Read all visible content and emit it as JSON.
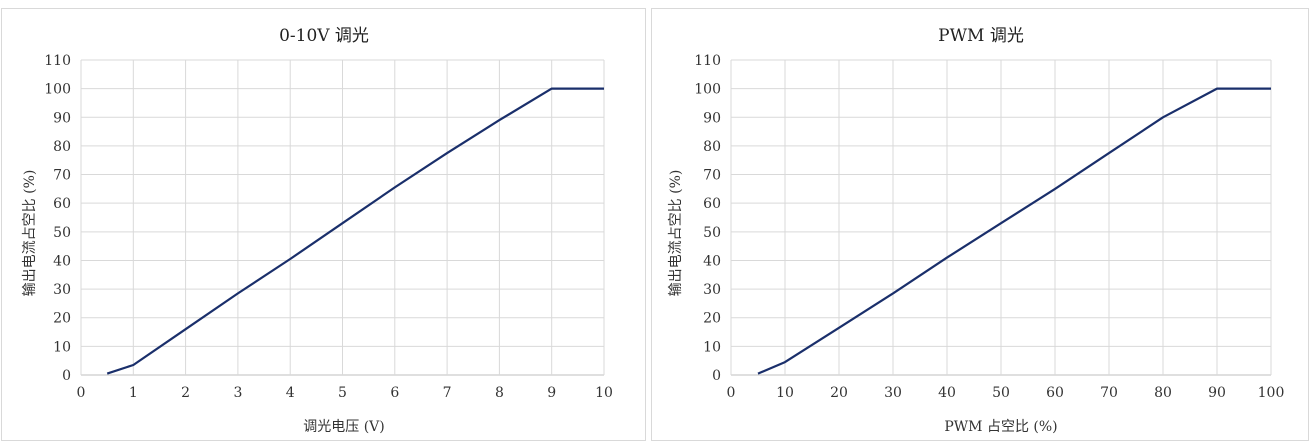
{
  "chart_data": [
    {
      "type": "line",
      "title": "0-10V 调光",
      "xlabel": "调光电压 (V)",
      "ylabel": "输出电流占空比 (%)",
      "xlim": [
        0,
        10
      ],
      "ylim": [
        0,
        110
      ],
      "xticks": [
        0,
        1,
        2,
        3,
        4,
        5,
        6,
        7,
        8,
        9,
        10
      ],
      "yticks": [
        0,
        10,
        20,
        30,
        40,
        50,
        60,
        70,
        80,
        90,
        100,
        110
      ],
      "grid": true,
      "legend": "none",
      "line_color": "#1a2f6b",
      "series": [
        {
          "x": [
            0.5,
            1,
            2,
            3,
            4,
            5,
            6,
            7,
            8,
            9,
            10
          ],
          "y": [
            0.5,
            3.5,
            16,
            28.5,
            40.5,
            53,
            65.5,
            77.5,
            89,
            100,
            100
          ]
        }
      ]
    },
    {
      "type": "line",
      "title": "PWM 调光",
      "xlabel": "PWM 占空比 (%)",
      "ylabel": "输出电流占空比 (%)",
      "xlim": [
        0,
        100
      ],
      "ylim": [
        0,
        110
      ],
      "xticks": [
        0,
        10,
        20,
        30,
        40,
        50,
        60,
        70,
        80,
        90,
        100
      ],
      "yticks": [
        0,
        10,
        20,
        30,
        40,
        50,
        60,
        70,
        80,
        90,
        100,
        110
      ],
      "grid": true,
      "legend": "none",
      "line_color": "#1a2f6b",
      "series": [
        {
          "x": [
            5,
            10,
            20,
            30,
            40,
            50,
            60,
            70,
            80,
            90,
            100
          ],
          "y": [
            0.5,
            4.5,
            16.5,
            28.5,
            41,
            53,
            65,
            77.5,
            90,
            100,
            100
          ]
        }
      ]
    }
  ]
}
